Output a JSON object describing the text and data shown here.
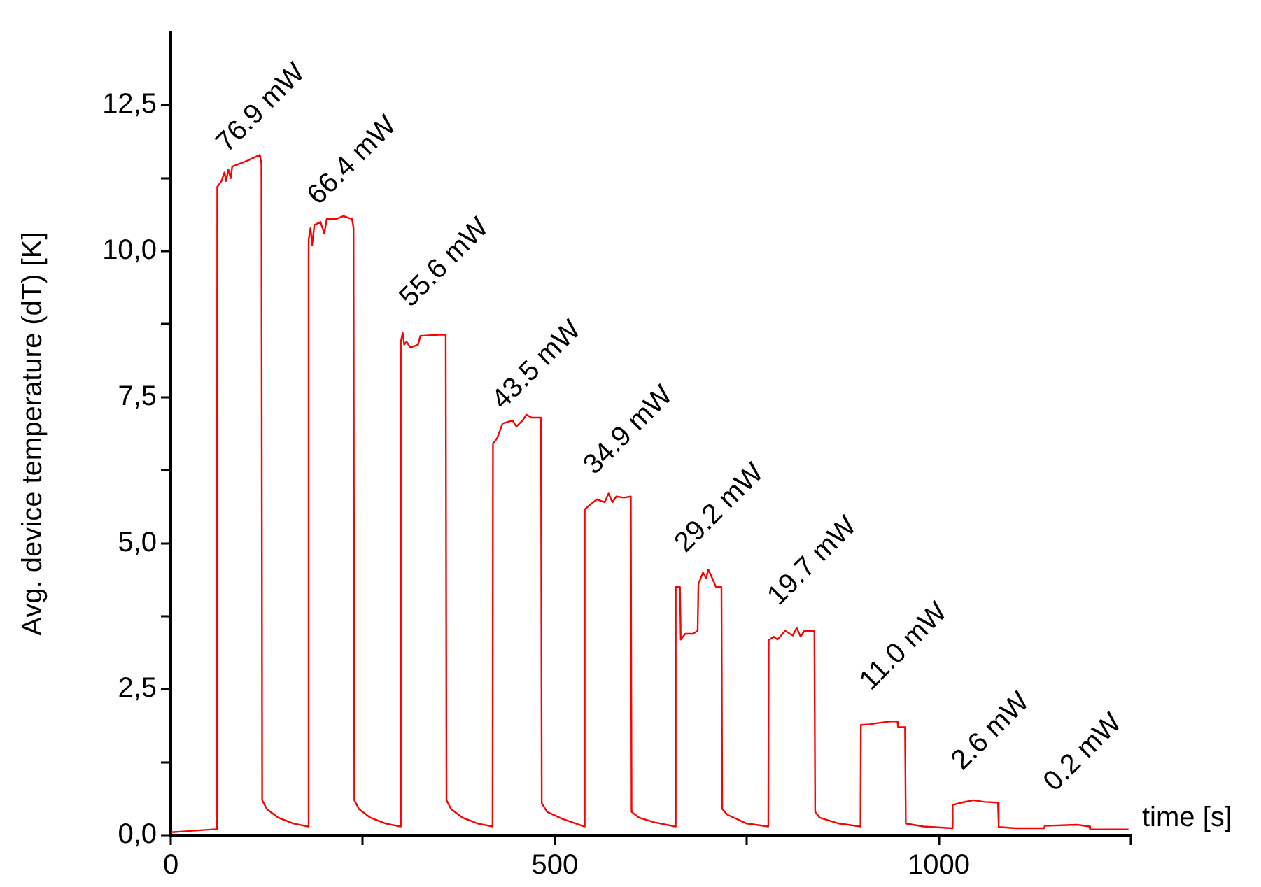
{
  "chart_data": {
    "type": "line",
    "xlabel": "time [s]",
    "ylabel": "Avg. device temperature (dT) [K]",
    "xlim": [
      0,
      1250
    ],
    "xticks": [
      0,
      {
        "value": 250,
        "label": null
      },
      500,
      {
        "value": 750,
        "label": null
      },
      1000,
      {
        "value": 1250,
        "label": null
      }
    ],
    "ylim": [
      0,
      13.75
    ],
    "yticks": [
      {
        "value": 0,
        "label": "0,0"
      },
      {
        "value": 1.25,
        "label": null
      },
      {
        "value": 2.5,
        "label": "2,5"
      },
      {
        "value": 3.75,
        "label": null
      },
      {
        "value": 5,
        "label": "5,0"
      },
      {
        "value": 6.25,
        "label": null
      },
      {
        "value": 7.5,
        "label": "7,5"
      },
      {
        "value": 8.75,
        "label": null
      },
      {
        "value": 10,
        "label": "10,0"
      },
      {
        "value": 11.25,
        "label": null
      },
      {
        "value": 12.5,
        "label": "12,5"
      }
    ],
    "grid": false,
    "legend": false,
    "marker": "none",
    "line_style": "solid",
    "series": [
      {
        "color": "#ff0000",
        "x": [
          0,
          55,
          60,
          60.5,
          66,
          70,
          72,
          75,
          78,
          80,
          100,
          116,
          118,
          119,
          125,
          140,
          160,
          179,
          179.5,
          182,
          184,
          187,
          195,
          200,
          203,
          215,
          225,
          236,
          238,
          239,
          245,
          260,
          280,
          299,
          299.5,
          302,
          304,
          307,
          312,
          322,
          325,
          350,
          358,
          359,
          365,
          380,
          400,
          419,
          419.5,
          425,
          432,
          445,
          450,
          458,
          463,
          470,
          482,
          483,
          490,
          510,
          538,
          539,
          545,
          555,
          565,
          570,
          575,
          580,
          590,
          599,
          600,
          610,
          630,
          657,
          657.5,
          663,
          664,
          670,
          680,
          686,
          687,
          693,
          697,
          700,
          710,
          717,
          718,
          725,
          750,
          778,
          778.5,
          785,
          790,
          800,
          810,
          815,
          820,
          825,
          830,
          838,
          839,
          845,
          870,
          898,
          898.5,
          910,
          925,
          938,
          946,
          947,
          956,
          957,
          980,
          1017,
          1018,
          1030,
          1045,
          1060,
          1077,
          1078,
          1100,
          1137,
          1138,
          1160,
          1180,
          1196,
          1197,
          1247
        ],
        "values": [
          0.05,
          0.1,
          0.1,
          11.1,
          11.2,
          11.35,
          11.2,
          11.4,
          11.25,
          11.45,
          11.55,
          11.65,
          11.5,
          0.6,
          0.45,
          0.3,
          0.2,
          0.15,
          10.2,
          10.4,
          10.1,
          10.45,
          10.5,
          10.3,
          10.55,
          10.55,
          10.6,
          10.55,
          10.4,
          0.6,
          0.45,
          0.3,
          0.2,
          0.15,
          8.45,
          8.6,
          8.4,
          8.45,
          8.35,
          8.4,
          8.55,
          8.57,
          8.57,
          0.6,
          0.45,
          0.3,
          0.2,
          0.15,
          6.7,
          6.8,
          7.05,
          7.1,
          7.0,
          7.1,
          7.2,
          7.15,
          7.15,
          0.55,
          0.4,
          0.28,
          0.15,
          5.58,
          5.65,
          5.75,
          5.7,
          5.85,
          5.7,
          5.8,
          5.78,
          5.8,
          0.4,
          0.3,
          0.22,
          0.15,
          4.25,
          4.25,
          3.35,
          3.45,
          3.45,
          3.5,
          4.3,
          4.5,
          4.4,
          4.55,
          4.25,
          4.25,
          0.45,
          0.35,
          0.2,
          0.15,
          3.34,
          3.4,
          3.35,
          3.5,
          3.42,
          3.55,
          3.4,
          3.5,
          3.5,
          3.5,
          0.4,
          0.3,
          0.2,
          0.15,
          1.89,
          1.9,
          1.93,
          1.95,
          1.95,
          1.85,
          1.85,
          0.2,
          0.15,
          0.12,
          0.52,
          0.56,
          0.6,
          0.57,
          0.56,
          0.14,
          0.12,
          0.12,
          0.16,
          0.17,
          0.18,
          0.15,
          0.1,
          0.1
        ]
      }
    ],
    "annotations": [
      {
        "text": "76.9 mW",
        "x": 60.5,
        "y": 11.1
      },
      {
        "text": "66.4 mW",
        "x": 179.5,
        "y": 10.2
      },
      {
        "text": "55.6 mW",
        "x": 299.5,
        "y": 8.45
      },
      {
        "text": "43.5 mW",
        "x": 419.5,
        "y": 6.7
      },
      {
        "text": "34.9 mW",
        "x": 539,
        "y": 5.58
      },
      {
        "text": "29.2 mW",
        "x": 657.5,
        "y": 4.25
      },
      {
        "text": "19.7 mW",
        "x": 778.5,
        "y": 3.34
      },
      {
        "text": "11.0 mW",
        "x": 898.5,
        "y": 1.89
      },
      {
        "text": "2.6 mW",
        "x": 1018,
        "y": 0.52
      },
      {
        "text": "0.2 mW",
        "x": 1138,
        "y": 0.16
      }
    ]
  }
}
